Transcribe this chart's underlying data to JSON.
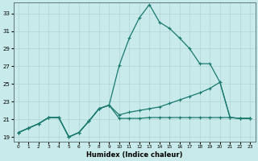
{
  "xlabel": "Humidex (Indice chaleur)",
  "xlim": [
    -0.5,
    23.5
  ],
  "ylim": [
    18.5,
    34.2
  ],
  "yticks": [
    19,
    21,
    23,
    25,
    27,
    29,
    31,
    33
  ],
  "xticks": [
    0,
    1,
    2,
    3,
    4,
    5,
    6,
    7,
    8,
    9,
    10,
    11,
    12,
    13,
    14,
    15,
    16,
    17,
    18,
    19,
    20,
    21,
    22,
    23
  ],
  "bg_color": "#c8eaea",
  "grid_color": "#b0d4d4",
  "line_color": "#1a7a6e",
  "line1_x": [
    0,
    1,
    2,
    3,
    4,
    5,
    6,
    7,
    8,
    9,
    10,
    11,
    12,
    13,
    14,
    15,
    16,
    17,
    18,
    19,
    20,
    21,
    22,
    23
  ],
  "line1_y": [
    19.5,
    20.0,
    20.5,
    21.2,
    21.2,
    19.0,
    19.5,
    20.8,
    22.2,
    22.6,
    27.1,
    30.2,
    32.5,
    34.0,
    32.0,
    31.3,
    30.2,
    29.0,
    27.3,
    27.3,
    25.2,
    21.2,
    21.1,
    21.1
  ],
  "line2_x": [
    0,
    1,
    2,
    3,
    4,
    5,
    6,
    7,
    8,
    9,
    10,
    11,
    12,
    13,
    14,
    15,
    16,
    17,
    18,
    19,
    20,
    21,
    22,
    23
  ],
  "line2_y": [
    19.5,
    20.0,
    20.5,
    21.2,
    21.2,
    19.0,
    19.5,
    20.8,
    22.2,
    22.6,
    21.5,
    21.8,
    22.0,
    22.2,
    22.4,
    22.8,
    23.2,
    23.6,
    24.0,
    24.5,
    25.2,
    21.2,
    21.1,
    21.1
  ],
  "line3_x": [
    0,
    1,
    2,
    3,
    4,
    5,
    6,
    7,
    8,
    9,
    10,
    11,
    12,
    13,
    14,
    15,
    16,
    17,
    18,
    19,
    20,
    21,
    22,
    23
  ],
  "line3_y": [
    19.5,
    20.0,
    20.5,
    21.2,
    21.2,
    19.0,
    19.5,
    20.8,
    22.2,
    22.6,
    21.1,
    21.1,
    21.1,
    21.2,
    21.2,
    21.2,
    21.2,
    21.2,
    21.2,
    21.2,
    21.2,
    21.2,
    21.1,
    21.1
  ]
}
